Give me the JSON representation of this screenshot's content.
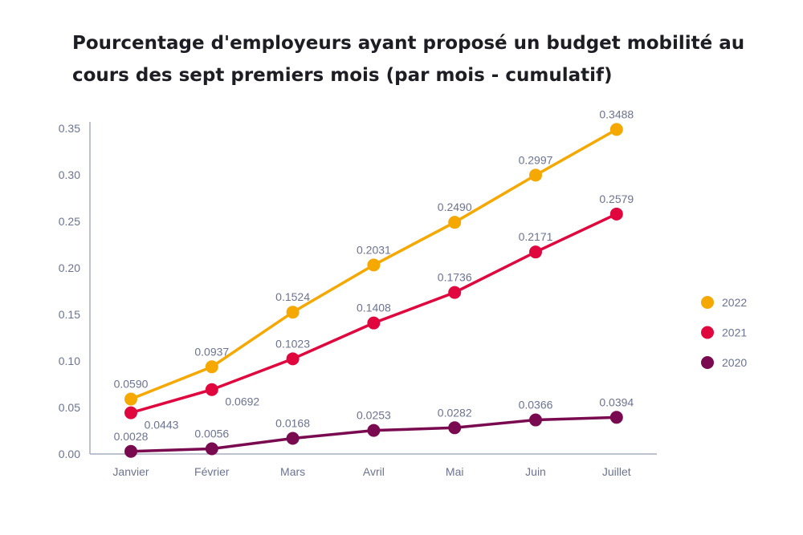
{
  "chart_data": {
    "type": "line",
    "title": "Pourcentage d'employeurs ayant proposé un budget mobilité au cours des sept premiers mois (par mois - cumulatif)",
    "xlabel": "",
    "ylabel": "",
    "categories": [
      "Janvier",
      "Février",
      "Mars",
      "Avril",
      "Mai",
      "Juin",
      "Juillet"
    ],
    "ylim": [
      0,
      0.35
    ],
    "yticks": [
      "0.00",
      "0.05",
      "0.10",
      "0.15",
      "0.20",
      "0.25",
      "0.30",
      "0.35"
    ],
    "grid": false,
    "legend_position": "right",
    "series": [
      {
        "name": "2022",
        "color": "#F5A800",
        "values": [
          0.059,
          0.0937,
          0.1524,
          0.2031,
          0.249,
          0.2997,
          0.3488
        ],
        "labels": [
          "0.0590",
          "0.0937",
          "0.1524",
          "0.2031",
          "0.2490",
          "0.2997",
          "0.3488"
        ]
      },
      {
        "name": "2021",
        "color": "#E0073F",
        "values": [
          0.0443,
          0.0692,
          0.1023,
          0.1408,
          0.1736,
          0.2171,
          0.2579
        ],
        "labels": [
          "0.0443",
          "0.0692",
          "0.1023",
          "0.1408",
          "0.1736",
          "0.2171",
          "0.2579"
        ]
      },
      {
        "name": "2020",
        "color": "#7A0A4F",
        "values": [
          0.0028,
          0.0056,
          0.0168,
          0.0253,
          0.0282,
          0.0366,
          0.0394
        ],
        "labels": [
          "0.0028",
          "0.0056",
          "0.0168",
          "0.0253",
          "0.0282",
          "0.0366",
          "0.0394"
        ]
      }
    ]
  }
}
